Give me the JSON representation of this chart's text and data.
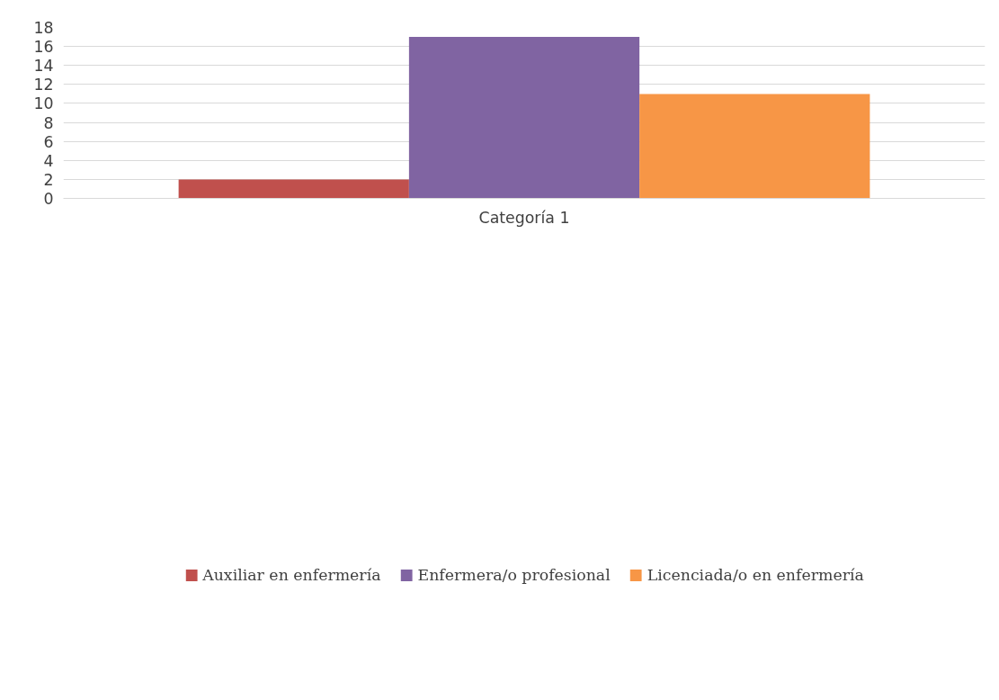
{
  "chart_data": {
    "type": "bar",
    "categories": [
      "Categoría 1"
    ],
    "series": [
      {
        "name": "Auxiliar en enfermería",
        "color": "#c0504d",
        "values": [
          2
        ]
      },
      {
        "name": "Enfermera/o profesional",
        "color": "#8064a2",
        "values": [
          17
        ]
      },
      {
        "name": "Licenciada/o en enfermería",
        "color": "#f79646",
        "values": [
          11
        ]
      }
    ],
    "ylim": [
      0,
      18
    ],
    "yticks": [
      0,
      2,
      4,
      6,
      8,
      10,
      12,
      14,
      16,
      18
    ],
    "grid": "y",
    "legend": "bottom"
  }
}
